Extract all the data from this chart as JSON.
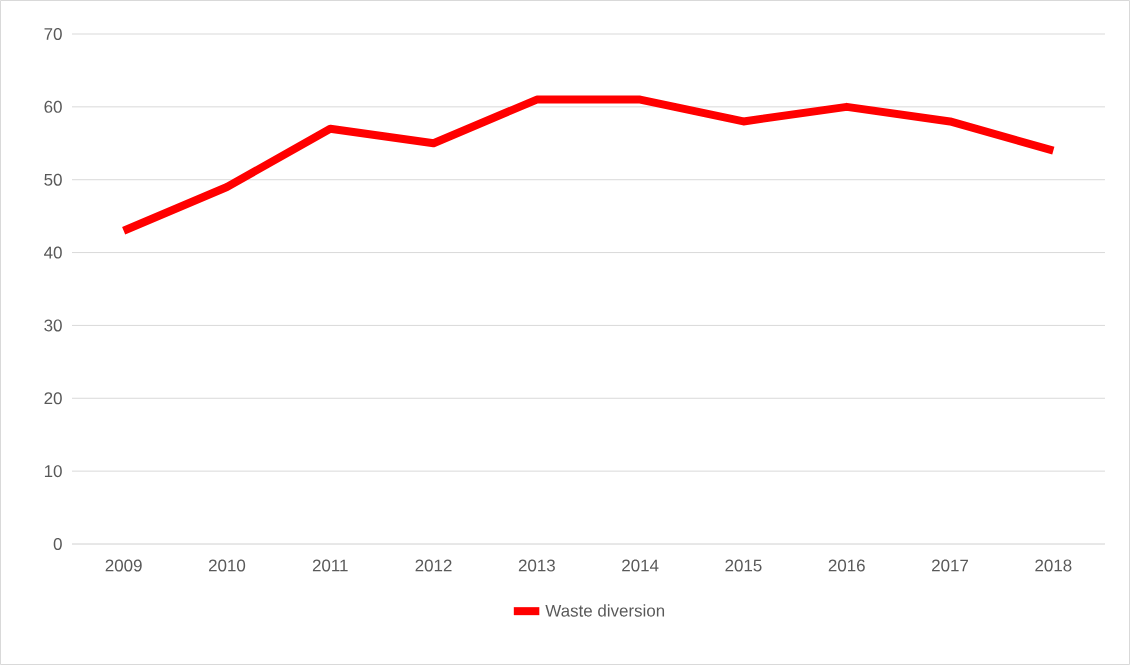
{
  "chart_data": {
    "type": "line",
    "categories": [
      "2009",
      "2010",
      "2011",
      "2012",
      "2013",
      "2014",
      "2015",
      "2016",
      "2017",
      "2018"
    ],
    "series": [
      {
        "name": "Waste diversion",
        "color": "#ff0000",
        "values": [
          43,
          49,
          57,
          55,
          61,
          61,
          58,
          60,
          58,
          54
        ]
      }
    ],
    "ylim": [
      0,
      70
    ],
    "yticks": [
      0,
      10,
      20,
      30,
      40,
      50,
      60,
      70
    ],
    "grid": "y",
    "legend": "bottom",
    "line_style": "solid"
  }
}
